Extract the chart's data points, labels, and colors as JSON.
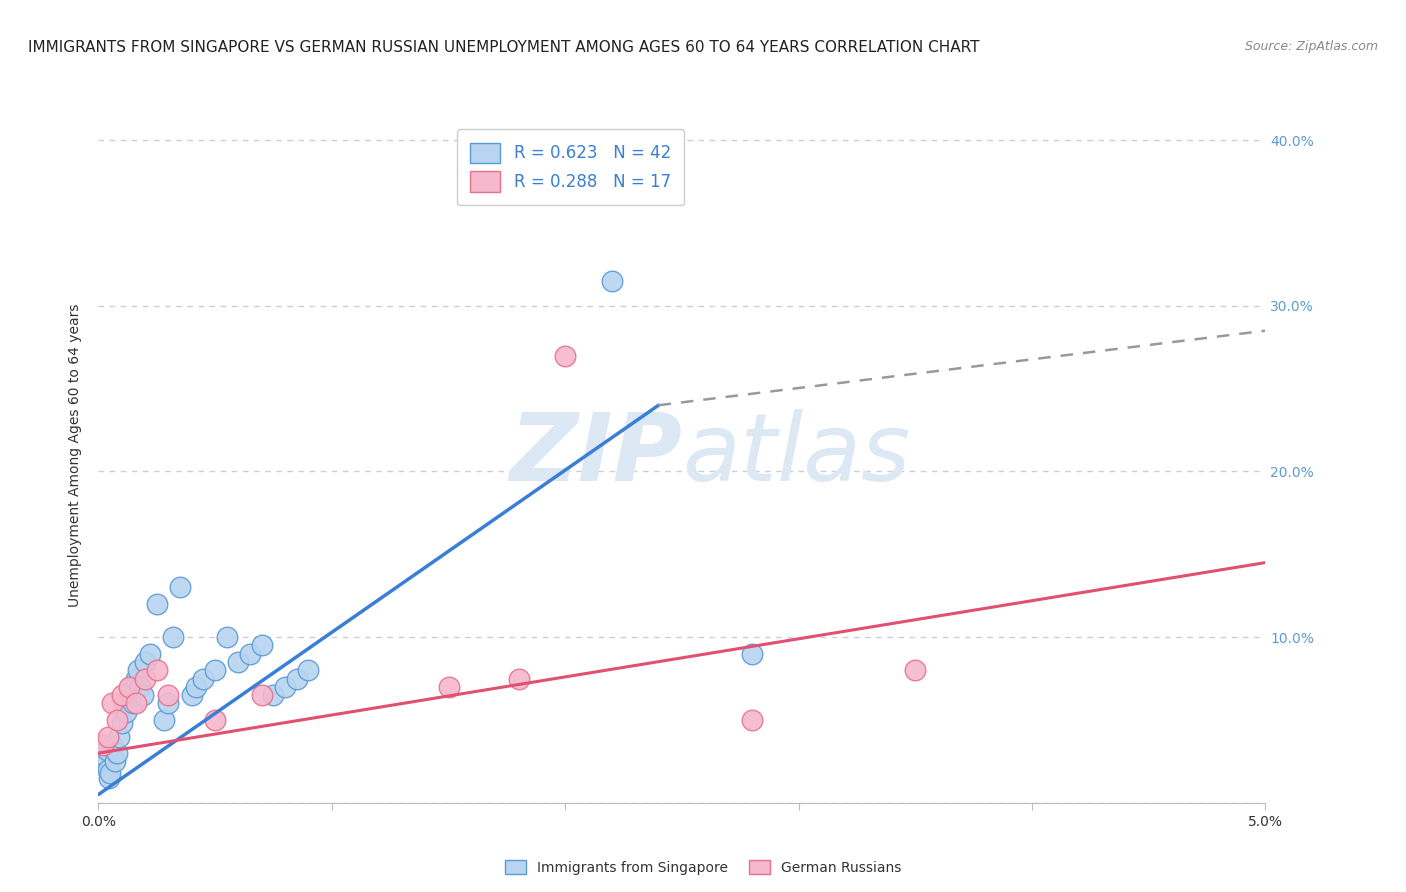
{
  "title": "IMMIGRANTS FROM SINGAPORE VS GERMAN RUSSIAN UNEMPLOYMENT AMONG AGES 60 TO 64 YEARS CORRELATION CHART",
  "source": "Source: ZipAtlas.com",
  "ylabel": "Unemployment Among Ages 60 to 64 years",
  "xlim": [
    0.0,
    0.05
  ],
  "ylim": [
    0.0,
    0.42
  ],
  "xticks": [
    0.0,
    0.01,
    0.02,
    0.03,
    0.04,
    0.05
  ],
  "xticklabels": [
    "0.0%",
    "",
    "",
    "",
    "",
    "5.0%"
  ],
  "yticks": [
    0.0,
    0.1,
    0.2,
    0.3,
    0.4
  ],
  "left_yticklabels": [
    "",
    "",
    "",
    "",
    ""
  ],
  "right_yticklabels": [
    "",
    "10.0%",
    "20.0%",
    "30.0%",
    "40.0%"
  ],
  "right_ytick_color": "#5b9bd5",
  "series1_label": "Immigrants from Singapore",
  "series1_color": "#b8d4f0",
  "series1_edge_color": "#5b9bd5",
  "series1_R": "0.623",
  "series1_N": "42",
  "series2_label": "German Russians",
  "series2_color": "#f5b8cc",
  "series2_edge_color": "#e87090",
  "series2_R": "0.288",
  "series2_N": "17",
  "singapore_x": [
    0.0002,
    0.00025,
    0.0003,
    0.00035,
    0.0004,
    0.00045,
    0.0005,
    0.0006,
    0.0007,
    0.0008,
    0.0009,
    0.001,
    0.0011,
    0.0012,
    0.0013,
    0.0014,
    0.0015,
    0.0016,
    0.0017,
    0.0018,
    0.0019,
    0.002,
    0.0022,
    0.0025,
    0.0028,
    0.003,
    0.0032,
    0.0035,
    0.004,
    0.0042,
    0.0045,
    0.005,
    0.0055,
    0.006,
    0.0065,
    0.007,
    0.0075,
    0.008,
    0.0085,
    0.009,
    0.022,
    0.028
  ],
  "singapore_y": [
    0.03,
    0.025,
    0.028,
    0.032,
    0.02,
    0.015,
    0.018,
    0.035,
    0.025,
    0.03,
    0.04,
    0.048,
    0.06,
    0.055,
    0.065,
    0.07,
    0.06,
    0.075,
    0.08,
    0.07,
    0.065,
    0.085,
    0.09,
    0.12,
    0.05,
    0.06,
    0.1,
    0.13,
    0.065,
    0.07,
    0.075,
    0.08,
    0.1,
    0.085,
    0.09,
    0.095,
    0.065,
    0.07,
    0.075,
    0.08,
    0.315,
    0.09
  ],
  "german_x": [
    0.0002,
    0.0004,
    0.0006,
    0.0008,
    0.001,
    0.0013,
    0.0016,
    0.002,
    0.0025,
    0.003,
    0.005,
    0.007,
    0.015,
    0.018,
    0.02,
    0.028,
    0.035
  ],
  "german_y": [
    0.035,
    0.04,
    0.06,
    0.05,
    0.065,
    0.07,
    0.06,
    0.075,
    0.08,
    0.065,
    0.05,
    0.065,
    0.07,
    0.075,
    0.27,
    0.05,
    0.08
  ],
  "sg_regline_x0": 0.0,
  "sg_regline_y0": 0.005,
  "sg_regline_x1": 0.024,
  "sg_regline_y1": 0.24,
  "sg_regline_dash_x0": 0.024,
  "sg_regline_dash_y0": 0.24,
  "sg_regline_dash_x1": 0.05,
  "sg_regline_dash_y1": 0.285,
  "gr_regline_x0": 0.0,
  "gr_regline_y0": 0.03,
  "gr_regline_x1": 0.05,
  "gr_regline_y1": 0.145,
  "background_color": "#ffffff",
  "grid_color": "#ccccdd",
  "watermark_color": "#dde8f5",
  "title_fontsize": 11,
  "axis_label_fontsize": 10,
  "tick_fontsize": 10,
  "legend_fontsize": 12
}
